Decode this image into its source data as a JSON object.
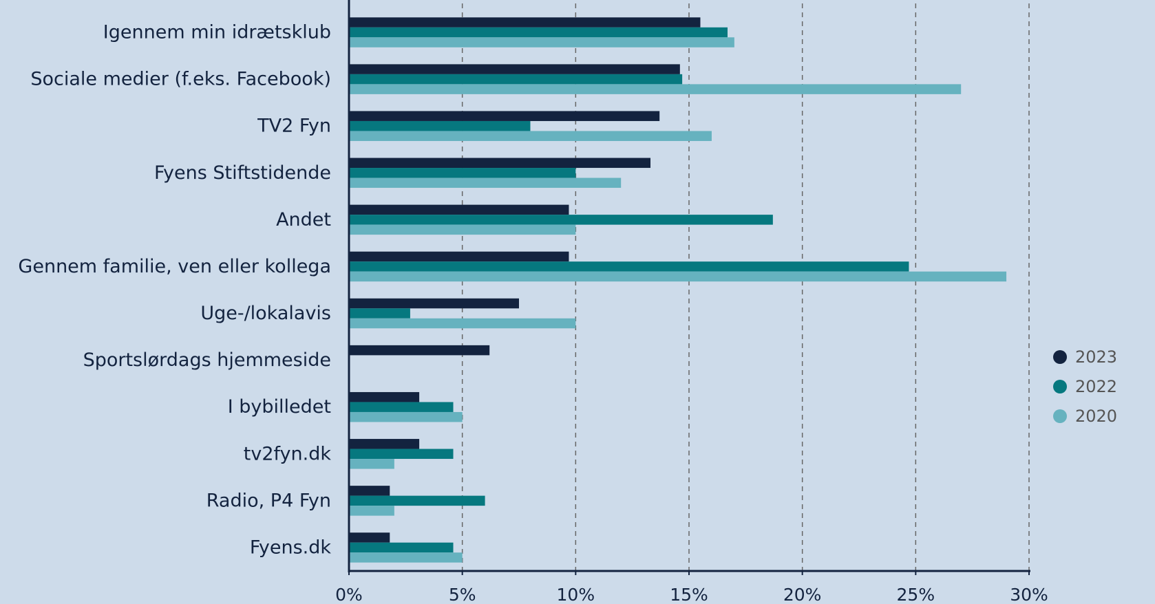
{
  "chart_data": {
    "type": "bar",
    "orientation": "horizontal",
    "categories": [
      "Igennem min idrætsklub",
      "Sociale medier (f.eks. Facebook)",
      "TV2 Fyn",
      "Fyens Stiftstidende",
      "Andet",
      "Gennem familie, ven eller kollega",
      "Uge-/lokalavis",
      "Sportslørdags hjemmeside",
      "I bybilledet",
      "tv2fyn.dk",
      "Radio, P4 Fyn",
      "Fyens.dk"
    ],
    "series": [
      {
        "name": "2023",
        "color": "#13233f",
        "values": [
          15.5,
          14.6,
          13.7,
          13.3,
          9.7,
          9.7,
          7.5,
          6.2,
          3.1,
          3.1,
          1.8,
          1.8
        ]
      },
      {
        "name": "2022",
        "color": "#06787f",
        "values": [
          16.7,
          14.7,
          8.0,
          10.0,
          18.7,
          24.7,
          2.7,
          null,
          4.6,
          4.6,
          6.0,
          4.6
        ]
      },
      {
        "name": "2020",
        "color": "#66b2bf",
        "values": [
          17.0,
          27.0,
          16.0,
          12.0,
          10.0,
          29.0,
          10.0,
          null,
          5.0,
          2.0,
          2.0,
          5.0
        ]
      }
    ],
    "xlim": [
      0,
      30
    ],
    "xticks": [
      {
        "value": 0,
        "label": "0%"
      },
      {
        "value": 5,
        "label": "5%"
      },
      {
        "value": 10,
        "label": "10%"
      },
      {
        "value": 15,
        "label": "15%"
      },
      {
        "value": 20,
        "label": "20%"
      },
      {
        "value": 25,
        "label": "25%"
      },
      {
        "value": 30,
        "label": "30%"
      }
    ],
    "grid": true,
    "legend": "right"
  }
}
